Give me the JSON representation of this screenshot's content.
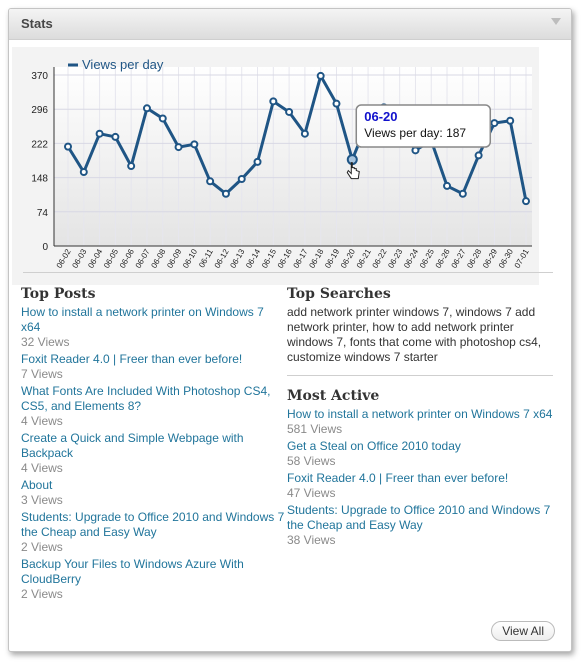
{
  "widget": {
    "title": "Stats"
  },
  "chart_data": {
    "type": "line",
    "legend": "Views per day",
    "legend_position": "top-left",
    "categories": [
      "06-02",
      "06-03",
      "06-04",
      "06-05",
      "06-06",
      "06-07",
      "06-08",
      "06-09",
      "06-10",
      "06-11",
      "06-12",
      "06-13",
      "06-14",
      "06-15",
      "06-16",
      "06-17",
      "06-18",
      "06-19",
      "06-20",
      "06-21",
      "06-22",
      "06-23",
      "06-24",
      "06-25",
      "06-26",
      "06-27",
      "06-28",
      "06-29",
      "06-30",
      "07-01"
    ],
    "series": [
      {
        "name": "Views per day",
        "values": [
          215,
          160,
          243,
          236,
          173,
          298,
          276,
          214,
          220,
          140,
          113,
          145,
          182,
          313,
          290,
          243,
          368,
          308,
          187,
          271,
          300,
          259,
          207,
          228,
          130,
          113,
          196,
          266,
          271,
          97
        ]
      }
    ],
    "yticks": [
      0,
      74,
      148,
      222,
      296,
      370
    ],
    "ylim": [
      0,
      370
    ],
    "grid": true,
    "color": "#1f5585",
    "tooltip": {
      "date": "06-20",
      "label": "Views per day: 187"
    }
  },
  "top_posts": {
    "heading": "Top Posts",
    "items": [
      {
        "title": "How to install a network printer on Windows 7 x64",
        "views": "32 Views"
      },
      {
        "title": "Foxit Reader 4.0 | Freer than ever before!",
        "views": "7 Views"
      },
      {
        "title": "What Fonts Are Included With Photoshop CS4, CS5, and Elements 8?",
        "views": "4 Views"
      },
      {
        "title": "Create a Quick and Simple Webpage with Backpack",
        "views": "4 Views"
      },
      {
        "title": "About",
        "views": "3 Views"
      },
      {
        "title": "Students: Upgrade to Office 2010 and Windows 7 the Cheap and Easy Way",
        "views": "2 Views"
      },
      {
        "title": "Backup Your Files to Windows Azure With CloudBerry",
        "views": "2 Views"
      }
    ]
  },
  "top_searches": {
    "heading": "Top Searches",
    "text": "add network printer windows 7,  windows 7 add network printer,  how to add network printer windows 7,  fonts that come with photoshop cs4,  customize windows 7 starter"
  },
  "most_active": {
    "heading": "Most Active",
    "items": [
      {
        "title": "How to install a network printer on Windows 7 x64",
        "views": "581 Views"
      },
      {
        "title": "Get a Steal on Office 2010 today",
        "views": "58 Views"
      },
      {
        "title": "Foxit Reader 4.0 | Freer than ever before!",
        "views": "47 Views"
      },
      {
        "title": "Students: Upgrade to Office 2010 and Windows 7 the Cheap and Easy Way",
        "views": "38 Views"
      }
    ]
  },
  "view_all_label": "View All"
}
